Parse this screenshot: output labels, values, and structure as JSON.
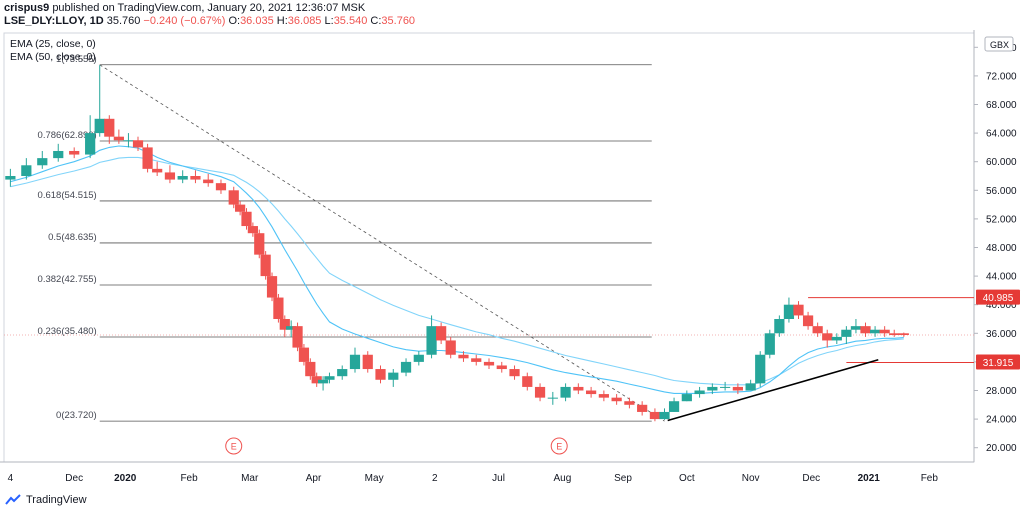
{
  "header": {
    "author": "crispus9",
    "published_text": "published on TradingView.com, January 20, 2021 12:36:07 MSK"
  },
  "symbol_line": {
    "symbol": "LSE_DLY:LLOY, 1D",
    "last": "35.760",
    "change": "−0.240 (−0.67%)",
    "o_label": "O:",
    "o": "36.035",
    "h_label": "H:",
    "h": "36.085",
    "l_label": "L:",
    "l": "35.540",
    "c_label": "C:",
    "c": "35.760"
  },
  "indicators": [
    "EMA (25, close, 0)",
    "EMA (50, close, 0)"
  ],
  "footer": {
    "brand": "TradingView"
  },
  "colors": {
    "up": "#26a69a",
    "down": "#ef5350",
    "ema": "#4fc3f7",
    "ema2": "#81d4fa",
    "fib": "#555555",
    "accent_red": "#e53935"
  },
  "chart_data": {
    "type": "candlestick",
    "currency": "GBX",
    "ylim": [
      18,
      78
    ],
    "yticks": [
      "76.000",
      "72.000",
      "68.000",
      "64.000",
      "60.000",
      "56.000",
      "52.000",
      "48.000",
      "44.000",
      "40.000",
      "36.000",
      "32.000",
      "28.000",
      "24.000",
      "20.000"
    ],
    "ytick_values": [
      76,
      72,
      68,
      64,
      60,
      56,
      52,
      48,
      44,
      40,
      36,
      32,
      28,
      24,
      20
    ],
    "xticks": [
      {
        "label": "4",
        "x": 0.0
      },
      {
        "label": "Dec",
        "x": 2.0
      },
      {
        "label": "2020",
        "x": 3.6
      },
      {
        "label": "Feb",
        "x": 5.6
      },
      {
        "label": "Mar",
        "x": 7.5
      },
      {
        "label": "Apr",
        "x": 9.5
      },
      {
        "label": "May",
        "x": 11.4
      },
      {
        "label": "2",
        "x": 13.3
      },
      {
        "label": "Jul",
        "x": 15.3
      },
      {
        "label": "Aug",
        "x": 17.3
      },
      {
        "label": "Sep",
        "x": 19.2
      },
      {
        "label": "Oct",
        "x": 21.2
      },
      {
        "label": "Nov",
        "x": 23.2
      },
      {
        "label": "Dec",
        "x": 25.1
      },
      {
        "label": "2021",
        "x": 26.9
      },
      {
        "label": "Feb",
        "x": 28.8
      }
    ],
    "fib_levels": [
      {
        "label": "1(73.555)",
        "value": 73.555
      },
      {
        "label": "0.786(62.890)",
        "value": 62.89
      },
      {
        "label": "0.618(54.515)",
        "value": 54.515
      },
      {
        "label": "0.5(48.635)",
        "value": 48.635
      },
      {
        "label": "0.382(42.755)",
        "value": 42.755
      },
      {
        "label": "0.236(35.480)",
        "value": 35.48
      },
      {
        "label": "0(23.720)",
        "value": 23.72
      }
    ],
    "price_labels": [
      {
        "text": "40.985",
        "value": 40.985
      },
      {
        "text": "31.915",
        "value": 31.915
      }
    ],
    "last_price": 35.76,
    "earnings_markers": [
      {
        "label": "E",
        "x": 7.0
      },
      {
        "label": "E",
        "x": 17.2
      }
    ],
    "trendline_start": {
      "x": 20.6,
      "y": 23.8
    },
    "trendline_end": {
      "x": 27.2,
      "y": 32.3
    },
    "fib_anchor_high": {
      "x": 2.8,
      "y": 73.555
    },
    "fib_anchor_low": {
      "x": 20.5,
      "y": 23.72
    },
    "x": [
      0,
      0.5,
      1,
      1.5,
      2,
      2.5,
      2.8,
      3.1,
      3.4,
      3.7,
      4,
      4.3,
      4.6,
      5,
      5.4,
      5.8,
      6.2,
      6.6,
      7,
      7.2,
      7.4,
      7.6,
      7.8,
      8.0,
      8.2,
      8.4,
      8.6,
      8.8,
      9.0,
      9.2,
      9.4,
      9.6,
      9.8,
      10,
      10.4,
      10.8,
      11.2,
      11.6,
      12,
      12.4,
      12.8,
      13.2,
      13.5,
      13.8,
      14.2,
      14.6,
      15,
      15.4,
      15.8,
      16.2,
      16.6,
      17,
      17.4,
      17.8,
      18.2,
      18.6,
      19,
      19.4,
      19.8,
      20.2,
      20.5,
      20.8,
      21.2,
      21.6,
      22,
      22.4,
      22.8,
      23.2,
      23.5,
      23.8,
      24.1,
      24.4,
      24.7,
      25,
      25.3,
      25.6,
      25.9,
      26.2,
      26.5,
      26.8,
      27.1,
      27.4,
      27.7,
      28.0
    ],
    "open": [
      57.5,
      58.0,
      59.5,
      60.5,
      61.5,
      61.0,
      64.0,
      66.0,
      63.5,
      63.0,
      63.0,
      62.0,
      59.0,
      58.5,
      57.5,
      58.0,
      57.5,
      57.0,
      56.0,
      54.0,
      53.0,
      51.0,
      50.0,
      47.0,
      44.0,
      41.0,
      38.0,
      36.5,
      37.0,
      34.0,
      32.0,
      30.0,
      29.0,
      29.5,
      30.0,
      31.0,
      33.0,
      31.0,
      29.5,
      30.5,
      32.0,
      33.0,
      37.0,
      35.0,
      33.0,
      32.5,
      32.0,
      31.5,
      31.0,
      30.0,
      28.5,
      27.0,
      27.0,
      28.5,
      28.0,
      27.5,
      27.0,
      26.5,
      26.0,
      25.0,
      24.0,
      25.0,
      26.5,
      27.5,
      28.0,
      28.5,
      28.5,
      28.0,
      29.0,
      33.0,
      36.0,
      38.0,
      40.0,
      38.5,
      37.0,
      36.0,
      35.0,
      35.5,
      36.5,
      37.0,
      36.0,
      36.5,
      36.0,
      36.0
    ],
    "close": [
      58.0,
      59.5,
      60.5,
      61.5,
      61.0,
      64.0,
      66.0,
      63.5,
      63.0,
      63.0,
      62.0,
      59.0,
      58.5,
      57.5,
      58.0,
      57.5,
      57.0,
      56.0,
      54.0,
      53.0,
      51.0,
      50.0,
      47.0,
      44.0,
      41.0,
      38.0,
      36.5,
      37.0,
      34.0,
      32.0,
      30.0,
      29.0,
      29.5,
      30.0,
      31.0,
      33.0,
      31.0,
      29.5,
      30.5,
      32.0,
      33.0,
      37.0,
      35.0,
      33.0,
      32.5,
      32.0,
      31.5,
      31.0,
      30.0,
      28.5,
      27.0,
      27.0,
      28.5,
      28.0,
      27.5,
      27.0,
      26.5,
      26.0,
      25.0,
      24.0,
      25.0,
      26.5,
      27.5,
      28.0,
      28.5,
      28.5,
      28.0,
      29.0,
      33.0,
      36.0,
      38.0,
      40.0,
      38.5,
      37.0,
      36.0,
      35.0,
      35.5,
      36.5,
      37.0,
      36.0,
      36.5,
      36.0,
      35.76,
      35.76
    ],
    "high": [
      59.0,
      60.5,
      61.5,
      62.5,
      62.0,
      66.5,
      73.5,
      66.5,
      64.5,
      64.0,
      63.5,
      62.5,
      60.0,
      59.5,
      58.8,
      58.8,
      58.3,
      57.5,
      56.5,
      54.5,
      53.5,
      51.5,
      50.5,
      47.5,
      44.5,
      41.5,
      38.5,
      37.8,
      37.5,
      34.5,
      32.5,
      30.5,
      30.0,
      30.5,
      31.5,
      34.0,
      33.5,
      31.5,
      31.0,
      32.5,
      33.5,
      38.5,
      37.5,
      35.5,
      33.5,
      33.0,
      32.5,
      32.0,
      31.5,
      30.5,
      29.0,
      27.8,
      29.0,
      29.0,
      28.5,
      28.0,
      27.5,
      27.0,
      26.5,
      25.5,
      25.5,
      27.0,
      28.0,
      28.5,
      29.0,
      29.2,
      29.0,
      29.5,
      33.5,
      36.5,
      38.5,
      41.0,
      40.5,
      39.0,
      37.5,
      36.5,
      36.0,
      37.0,
      38.0,
      37.5,
      37.0,
      37.0,
      36.5,
      36.1
    ],
    "low": [
      56.5,
      57.5,
      59.0,
      60.0,
      60.5,
      60.5,
      63.5,
      62.5,
      62.5,
      62.0,
      61.5,
      58.5,
      58.0,
      57.0,
      57.0,
      57.0,
      56.5,
      55.5,
      53.5,
      52.5,
      50.5,
      49.5,
      46.5,
      43.5,
      40.5,
      37.5,
      35.5,
      35.5,
      33.5,
      31.5,
      29.5,
      28.5,
      28.0,
      29.0,
      29.5,
      30.5,
      30.5,
      29.0,
      28.5,
      30.0,
      31.5,
      32.5,
      34.5,
      32.5,
      32.0,
      31.5,
      31.0,
      30.5,
      29.5,
      28.0,
      26.5,
      26.0,
      26.5,
      27.5,
      27.0,
      26.5,
      26.0,
      25.5,
      24.5,
      23.7,
      23.9,
      25.0,
      26.5,
      27.0,
      27.5,
      28.0,
      27.5,
      28.5,
      28.5,
      32.5,
      35.5,
      37.5,
      38.0,
      36.5,
      35.5,
      34.0,
      34.5,
      34.5,
      36.0,
      35.5,
      35.5,
      35.5,
      35.5,
      35.5
    ],
    "ema25": [
      57.2,
      57.8,
      58.6,
      59.4,
      60.0,
      60.8,
      61.6,
      62.0,
      62.2,
      62.1,
      61.9,
      61.3,
      60.6,
      59.9,
      59.4,
      58.9,
      58.4,
      57.9,
      57.2,
      56.4,
      55.6,
      54.7,
      53.6,
      52.3,
      50.9,
      49.3,
      47.7,
      46.2,
      44.7,
      43.1,
      41.6,
      40.1,
      38.8,
      37.6,
      36.6,
      35.9,
      35.3,
      34.7,
      34.1,
      33.7,
      33.5,
      33.6,
      33.6,
      33.5,
      33.3,
      33.1,
      32.9,
      32.6,
      32.3,
      31.9,
      31.4,
      30.9,
      30.5,
      30.2,
      29.9,
      29.6,
      29.3,
      28.9,
      28.5,
      28.1,
      27.8,
      27.6,
      27.6,
      27.6,
      27.7,
      27.8,
      27.8,
      27.9,
      28.4,
      29.2,
      30.2,
      31.4,
      32.5,
      33.3,
      33.8,
      34.1,
      34.3,
      34.6,
      34.9,
      35.0,
      35.2,
      35.3,
      35.3,
      35.4
    ],
    "ema50": [
      56.5,
      57.0,
      57.6,
      58.2,
      58.7,
      59.3,
      59.9,
      60.2,
      60.5,
      60.6,
      60.6,
      60.4,
      60.1,
      59.7,
      59.4,
      59.1,
      58.8,
      58.5,
      58.1,
      57.6,
      57.1,
      56.5,
      55.8,
      55.0,
      54.1,
      53.1,
      52.0,
      51.0,
      49.9,
      48.8,
      47.6,
      46.5,
      45.4,
      44.4,
      43.4,
      42.5,
      41.6,
      40.7,
      39.9,
      39.2,
      38.5,
      38.0,
      37.6,
      37.2,
      36.7,
      36.2,
      35.8,
      35.3,
      34.9,
      34.4,
      33.9,
      33.4,
      32.9,
      32.5,
      32.1,
      31.7,
      31.3,
      30.9,
      30.5,
      30.1,
      29.7,
      29.4,
      29.2,
      29.0,
      28.9,
      28.8,
      28.8,
      28.8,
      29.1,
      29.6,
      30.2,
      31.0,
      31.8,
      32.4,
      32.9,
      33.3,
      33.6,
      34.0,
      34.3,
      34.5,
      34.8,
      35.0,
      35.1,
      35.2
    ]
  }
}
